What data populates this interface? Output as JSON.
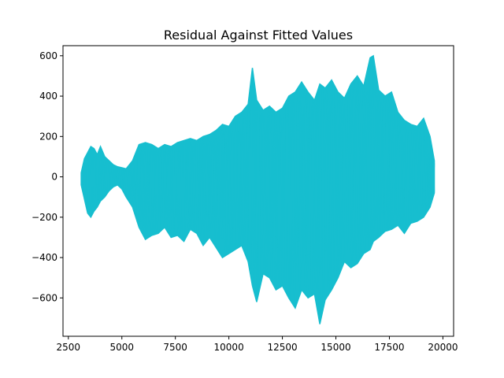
{
  "chart_data": {
    "type": "line",
    "title": "Residual Against Fitted Values",
    "xlabel": "",
    "ylabel": "",
    "xlim": [
      2250,
      20500
    ],
    "ylim": [
      -790,
      650
    ],
    "x_ticks": [
      2500,
      5000,
      7500,
      10000,
      12500,
      15000,
      17500,
      20000
    ],
    "x_tick_labels": [
      "2500",
      "5000",
      "7500",
      "10000",
      "12500",
      "15000",
      "17500",
      "20000"
    ],
    "y_ticks": [
      -600,
      -400,
      -200,
      0,
      200,
      400,
      600
    ],
    "y_tick_labels": [
      "−600",
      "−400",
      "−200",
      "0",
      "200",
      "400",
      "600"
    ],
    "grid": false,
    "colors": {
      "series": "#17becf",
      "frame": "#000000"
    },
    "series": [
      {
        "x": [
          3100,
          3250,
          3400,
          3550,
          3700,
          3850,
          4000,
          4200,
          4400,
          4600,
          4800,
          5000,
          5200,
          5500,
          5800,
          6100,
          6400,
          6700,
          7000,
          7300,
          7600,
          7900,
          8200,
          8500,
          8800,
          9100,
          9400,
          9700,
          10000,
          10300,
          10600,
          10900,
          11100,
          11300,
          11600,
          11900,
          12200,
          12500,
          12800,
          13100,
          13400,
          13700,
          14000,
          14250,
          14500,
          14800,
          15100,
          15400,
          15700,
          16000,
          16300,
          16600,
          16750,
          17000,
          17300,
          17600,
          17900,
          18200,
          18500,
          18800,
          19100,
          19400,
          19600
        ],
        "upper": [
          20,
          90,
          120,
          150,
          140,
          110,
          150,
          100,
          80,
          60,
          50,
          45,
          40,
          80,
          160,
          170,
          160,
          140,
          160,
          150,
          170,
          180,
          190,
          180,
          200,
          210,
          230,
          260,
          250,
          300,
          320,
          360,
          540,
          380,
          330,
          350,
          320,
          340,
          400,
          420,
          470,
          420,
          380,
          460,
          440,
          480,
          420,
          390,
          460,
          500,
          450,
          590,
          600,
          430,
          400,
          420,
          320,
          280,
          260,
          250,
          290,
          200,
          80
        ],
        "lower": [
          -40,
          -110,
          -180,
          -200,
          -170,
          -150,
          -120,
          -100,
          -70,
          -50,
          -40,
          -60,
          -100,
          -150,
          -250,
          -310,
          -290,
          -280,
          -250,
          -300,
          -290,
          -320,
          -260,
          -280,
          -340,
          -300,
          -350,
          -400,
          -380,
          -360,
          -340,
          -420,
          -540,
          -620,
          -480,
          -500,
          -560,
          -540,
          -600,
          -650,
          -560,
          -600,
          -580,
          -730,
          -610,
          -560,
          -500,
          -420,
          -450,
          -430,
          -380,
          -360,
          -320,
          -300,
          -270,
          -260,
          -240,
          -280,
          -230,
          -220,
          -200,
          -150,
          -80
        ]
      }
    ]
  }
}
